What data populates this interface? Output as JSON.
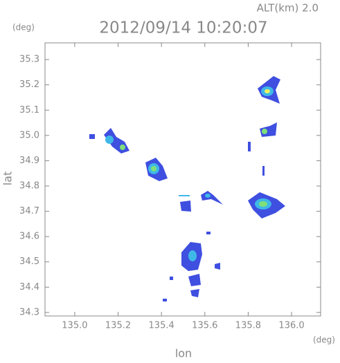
{
  "chart_data": {
    "type": "map",
    "title": "2012/09/14 10:20:07",
    "annotation": "ALT(km)  2.0",
    "x_label": "lon",
    "y_label": "lat",
    "x_unit": "(deg)",
    "y_unit": "(deg)",
    "xlim": [
      134.863,
      136.134
    ],
    "ylim": [
      34.286,
      35.366
    ],
    "xticks": [
      {
        "value": 135,
        "label": "135.0"
      },
      135.2,
      135.4,
      135.6,
      135.8,
      {
        "value": 136,
        "label": "136.0"
      }
    ],
    "yticks": [
      34.3,
      34.4,
      34.5,
      34.6,
      34.7,
      34.8,
      34.9,
      {
        "value": 35,
        "label": "35.0"
      },
      35.1,
      35.2,
      35.3
    ],
    "axis_color": "#888888"
  }
}
